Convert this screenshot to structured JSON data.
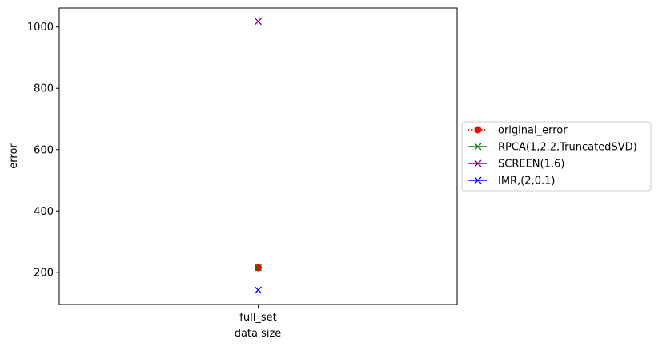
{
  "chart_data": {
    "type": "scatter",
    "title": "",
    "xlabel": "data size",
    "ylabel": "error",
    "categories": [
      "full_set"
    ],
    "ylim": [
      95,
      1062
    ],
    "yticks": [
      200,
      400,
      600,
      800,
      1000
    ],
    "grid": false,
    "legend_placement": "center-left outside",
    "series": [
      {
        "name": "original_error",
        "values": [
          215
        ],
        "color": "#ff0000",
        "marker": "circle",
        "linestyle": "dotted"
      },
      {
        "name": "RPCA(1,2.2,TruncatedSVD)",
        "values": [
          215
        ],
        "color": "#008000",
        "marker": "x",
        "linestyle": "solid"
      },
      {
        "name": "SCREEN(1,6)",
        "values": [
          1018
        ],
        "color": "#800080",
        "marker": "x",
        "linestyle": "solid"
      },
      {
        "name": "IMR,(2,0.1)",
        "values": [
          142
        ],
        "color": "#0000ff",
        "marker": "x",
        "linestyle": "solid"
      }
    ]
  }
}
